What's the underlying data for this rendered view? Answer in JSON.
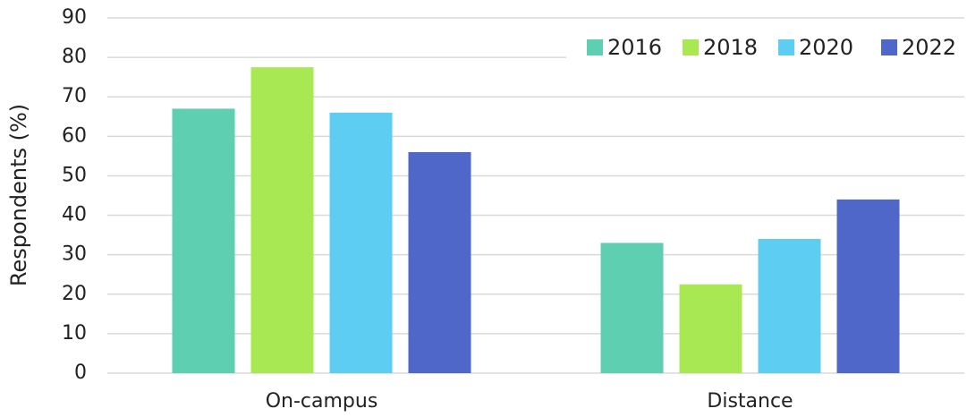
{
  "chart_data": {
    "type": "bar",
    "ylabel": "Respondents (%)",
    "categories": [
      "On-campus",
      "Distance"
    ],
    "series": [
      {
        "name": "2016",
        "color": "#5ecfb1",
        "values": [
          67,
          33
        ]
      },
      {
        "name": "2018",
        "color": "#a8e853",
        "values": [
          77.5,
          22.5
        ]
      },
      {
        "name": "2020",
        "color": "#5ecdf2",
        "values": [
          66,
          34
        ]
      },
      {
        "name": "2022",
        "color": "#4f67c8",
        "values": [
          56,
          44
        ]
      }
    ],
    "ylim": [
      0,
      90
    ],
    "yticks": [
      0,
      10,
      20,
      30,
      40,
      50,
      60,
      70,
      80,
      90
    ],
    "grid": true,
    "legend": "top-right"
  }
}
